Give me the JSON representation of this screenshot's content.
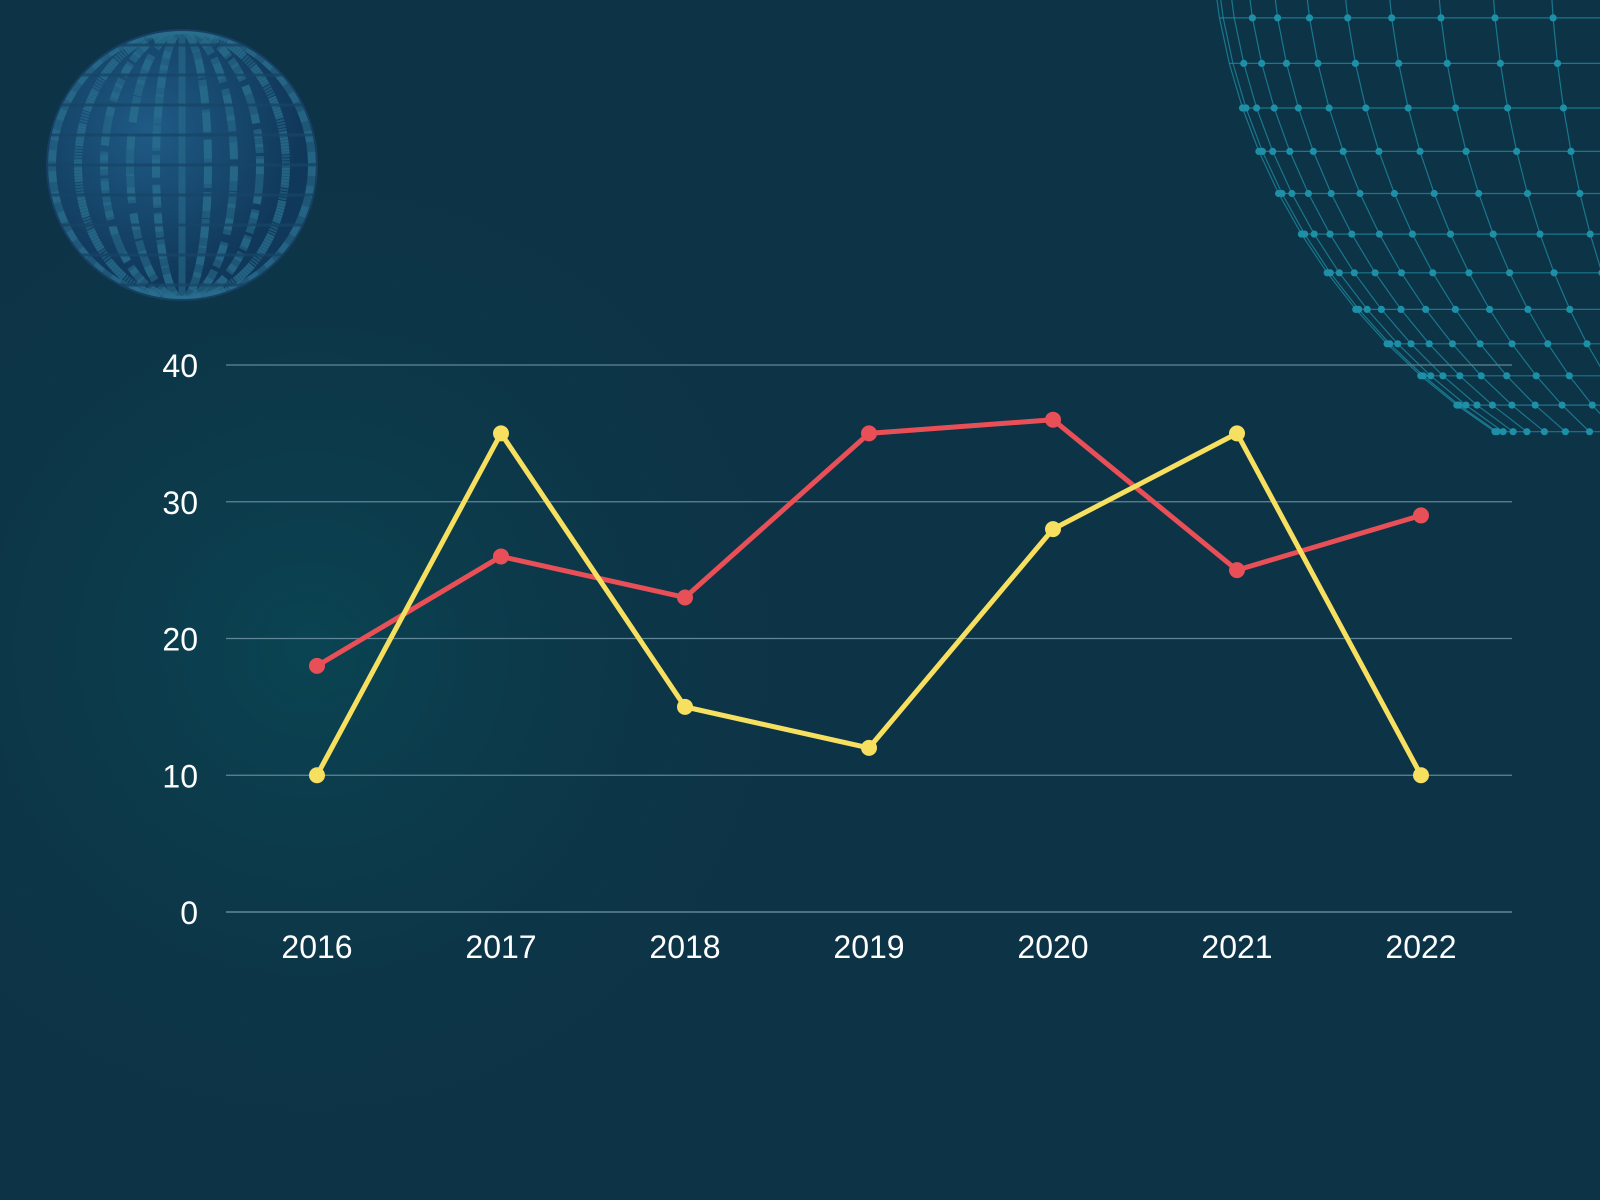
{
  "theme": {
    "background": "#0d3346",
    "glow": "#0a4452",
    "grid_color": "#5f8797",
    "text_color": "#ffffff",
    "decor_color": "#1d8fa6",
    "globe_color": "#1b4f7a"
  },
  "decorations": {
    "top_left": "circuit-globe",
    "top_right": "wireframe-sphere"
  },
  "chart_data": {
    "type": "line",
    "title": "",
    "xlabel": "",
    "ylabel": "",
    "categories": [
      "2016",
      "2017",
      "2018",
      "2019",
      "2020",
      "2021",
      "2022"
    ],
    "ylim": [
      0,
      40
    ],
    "yticks": [
      "0",
      "10",
      "20",
      "30",
      "40"
    ],
    "grid": true,
    "legend": "none",
    "series": [
      {
        "color": "#e84f57",
        "values": [
          18,
          26,
          23,
          35,
          36,
          25,
          29
        ]
      },
      {
        "color": "#f7e05f",
        "values": [
          10,
          35,
          15,
          12,
          28,
          35,
          10
        ]
      }
    ]
  }
}
